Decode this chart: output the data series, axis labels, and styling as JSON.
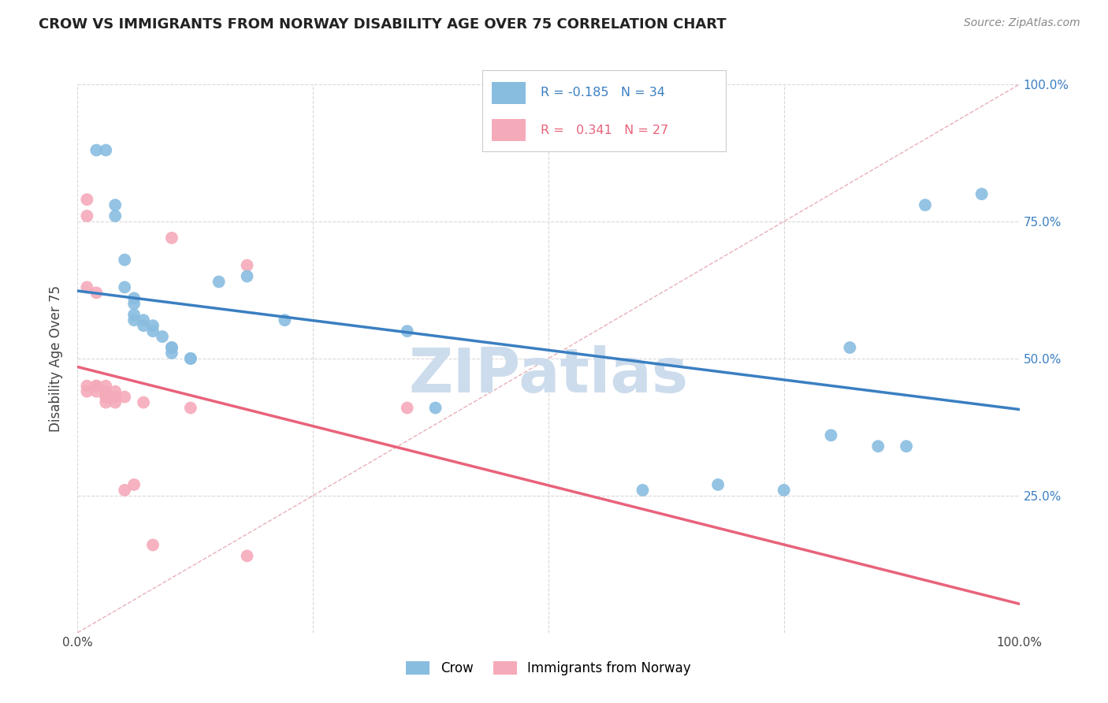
{
  "title": "CROW VS IMMIGRANTS FROM NORWAY DISABILITY AGE OVER 75 CORRELATION CHART",
  "source": "Source: ZipAtlas.com",
  "ylabel": "Disability Age Over 75",
  "xlim": [
    0,
    1
  ],
  "ylim": [
    0,
    1
  ],
  "crow_x": [
    0.02,
    0.03,
    0.04,
    0.04,
    0.05,
    0.05,
    0.06,
    0.06,
    0.06,
    0.06,
    0.07,
    0.07,
    0.08,
    0.08,
    0.09,
    0.1,
    0.1,
    0.1,
    0.12,
    0.12,
    0.15,
    0.18,
    0.22,
    0.35,
    0.38,
    0.6,
    0.68,
    0.75,
    0.8,
    0.82,
    0.85,
    0.88,
    0.9,
    0.96
  ],
  "crow_y": [
    0.88,
    0.88,
    0.78,
    0.76,
    0.68,
    0.63,
    0.61,
    0.6,
    0.58,
    0.57,
    0.57,
    0.56,
    0.56,
    0.55,
    0.54,
    0.52,
    0.52,
    0.51,
    0.5,
    0.5,
    0.64,
    0.65,
    0.57,
    0.55,
    0.41,
    0.26,
    0.27,
    0.26,
    0.36,
    0.52,
    0.34,
    0.34,
    0.78,
    0.8
  ],
  "norway_x": [
    0.01,
    0.01,
    0.01,
    0.01,
    0.01,
    0.02,
    0.02,
    0.02,
    0.02,
    0.03,
    0.03,
    0.03,
    0.03,
    0.03,
    0.04,
    0.04,
    0.04,
    0.05,
    0.05,
    0.06,
    0.07,
    0.08,
    0.1,
    0.12,
    0.18,
    0.18,
    0.35
  ],
  "norway_y": [
    0.79,
    0.76,
    0.63,
    0.45,
    0.44,
    0.62,
    0.45,
    0.45,
    0.44,
    0.45,
    0.44,
    0.43,
    0.43,
    0.42,
    0.44,
    0.43,
    0.42,
    0.43,
    0.26,
    0.27,
    0.42,
    0.16,
    0.72,
    0.41,
    0.67,
    0.14,
    0.41
  ],
  "crow_R": -0.185,
  "crow_N": 34,
  "norway_R": 0.341,
  "norway_N": 27,
  "crow_color": "#89bde0",
  "norway_color": "#f5aaba",
  "crow_line_color": "#3a7fc1",
  "norway_line_color": "#e8637a",
  "diagonal_color": "#e8b0b8",
  "background_color": "#ffffff",
  "grid_color": "#d8d8d8",
  "watermark": "ZIPatlas",
  "watermark_color": "#ccdcec"
}
